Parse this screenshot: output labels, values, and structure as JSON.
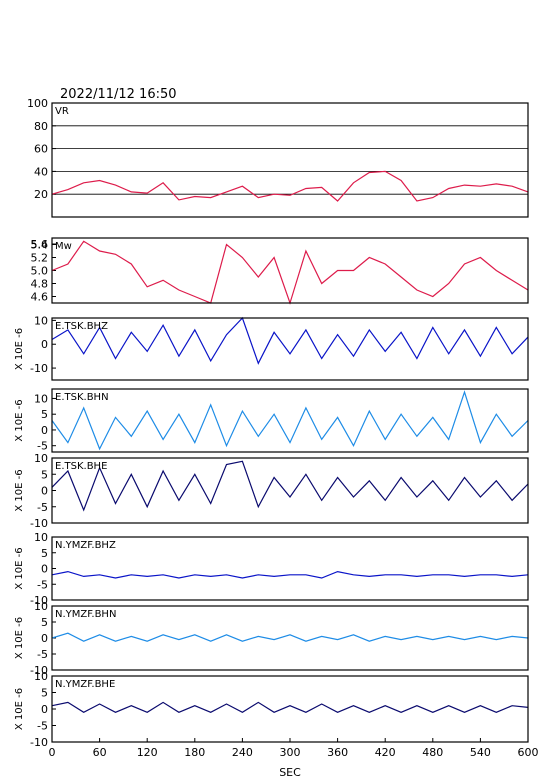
{
  "header": {
    "datetime": "2022/11/12  16:50"
  },
  "colors": {
    "vr": "#dd1c4b",
    "mw": "#dd1c4b",
    "bhz": "#0a14c8",
    "bhn": "#1e8ce6",
    "bhe": "#0a0a6e",
    "grid": "#000000"
  },
  "x_axis": {
    "label": "SEC",
    "range": [
      0,
      600
    ],
    "ticks": [
      "0",
      "60",
      "120",
      "180",
      "240",
      "300",
      "360",
      "420",
      "480",
      "540",
      "600"
    ]
  },
  "chart_data": [
    {
      "type": "line",
      "name": "VR",
      "label": "VR",
      "ylim": [
        0,
        100
      ],
      "ylabel": "",
      "yticks": [
        "100",
        "80",
        "60",
        "40",
        "20"
      ],
      "grid": true,
      "color_key": "vr",
      "x": [
        0,
        20,
        40,
        60,
        80,
        100,
        120,
        140,
        160,
        180,
        200,
        220,
        240,
        260,
        280,
        300,
        320,
        340,
        360,
        380,
        400,
        420,
        440,
        460,
        480,
        500,
        520,
        540,
        560,
        580,
        600
      ],
      "values": [
        20,
        24,
        30,
        32,
        28,
        22,
        21,
        30,
        15,
        18,
        17,
        22,
        27,
        17,
        20,
        19,
        25,
        26,
        14,
        30,
        39,
        40,
        32,
        14,
        17,
        25,
        28,
        27,
        29,
        27,
        22
      ]
    },
    {
      "type": "line",
      "name": "Mw",
      "label": "Mw",
      "ylim": [
        4.5,
        5.5
      ],
      "ylabel": "",
      "yticks": [
        "5.6",
        "5.4",
        "5.2",
        "5.0",
        "4.8",
        "4.6"
      ],
      "grid": false,
      "color_key": "mw",
      "x": [
        0,
        20,
        40,
        60,
        80,
        100,
        120,
        140,
        160,
        180,
        200,
        220,
        240,
        260,
        280,
        300,
        320,
        340,
        360,
        380,
        400,
        420,
        440,
        460,
        480,
        500,
        520,
        540,
        560,
        580,
        600
      ],
      "values": [
        5.0,
        5.1,
        5.45,
        5.3,
        5.25,
        5.1,
        4.75,
        4.85,
        4.7,
        4.6,
        4.5,
        5.4,
        5.2,
        4.9,
        5.2,
        4.5,
        5.3,
        4.8,
        5.0,
        5.0,
        5.2,
        5.1,
        4.9,
        4.7,
        4.6,
        4.8,
        5.1,
        5.2,
        5.0,
        4.85,
        4.7
      ]
    },
    {
      "type": "line",
      "name": "E.TSK.BHZ",
      "label": "E.TSK.BHZ",
      "ylim": [
        -15,
        11
      ],
      "ylabel": "X 10E -6",
      "yticks": [
        "10",
        "0",
        "-10"
      ],
      "grid": false,
      "color_key": "bhz",
      "x": [
        0,
        20,
        40,
        60,
        80,
        100,
        120,
        140,
        160,
        180,
        200,
        220,
        240,
        260,
        280,
        300,
        320,
        340,
        360,
        380,
        400,
        420,
        440,
        460,
        480,
        500,
        520,
        540,
        560,
        580,
        600
      ],
      "values": [
        2,
        6,
        -4,
        7,
        -6,
        5,
        -3,
        8,
        -5,
        6,
        -7,
        4,
        11,
        -8,
        5,
        -4,
        6,
        -6,
        4,
        -5,
        6,
        -3,
        5,
        -6,
        7,
        -4,
        6,
        -5,
        7,
        -4,
        3
      ]
    },
    {
      "type": "line",
      "name": "E.TSK.BHN",
      "label": "E.TSK.BHN",
      "ylim": [
        -7,
        13
      ],
      "ylabel": "X 10E -6",
      "yticks": [
        "10",
        "5",
        "0",
        "-5"
      ],
      "grid": false,
      "color_key": "bhn",
      "x": [
        0,
        20,
        40,
        60,
        80,
        100,
        120,
        140,
        160,
        180,
        200,
        220,
        240,
        260,
        280,
        300,
        320,
        340,
        360,
        380,
        400,
        420,
        440,
        460,
        480,
        500,
        520,
        540,
        560,
        580,
        600
      ],
      "values": [
        3,
        -4,
        7,
        -6,
        4,
        -2,
        6,
        -3,
        5,
        -4,
        8,
        -5,
        6,
        -2,
        5,
        -4,
        7,
        -3,
        4,
        -5,
        6,
        -3,
        5,
        -2,
        4,
        -3,
        12,
        -4,
        5,
        -2,
        3
      ]
    },
    {
      "type": "line",
      "name": "E.TSK.BHE",
      "label": "E.TSK.BHE",
      "ylim": [
        -10,
        10
      ],
      "ylabel": "X 10E -6",
      "yticks": [
        "10",
        "5",
        "0",
        "-5",
        "-10"
      ],
      "grid": false,
      "color_key": "bhe",
      "x": [
        0,
        20,
        40,
        60,
        80,
        100,
        120,
        140,
        160,
        180,
        200,
        220,
        240,
        260,
        280,
        300,
        320,
        340,
        360,
        380,
        400,
        420,
        440,
        460,
        480,
        500,
        520,
        540,
        560,
        580,
        600
      ],
      "values": [
        1,
        6,
        -6,
        7,
        -4,
        5,
        -5,
        6,
        -3,
        5,
        -4,
        8,
        9,
        -5,
        4,
        -2,
        5,
        -3,
        4,
        -2,
        3,
        -3,
        4,
        -2,
        3,
        -3,
        4,
        -2,
        3,
        -3,
        2
      ]
    },
    {
      "type": "line",
      "name": "N.YMZF.BHZ",
      "label": "N.YMZF.BHZ",
      "ylim": [
        -10,
        10
      ],
      "ylabel": "X 10E -6",
      "yticks": [
        "10",
        "5",
        "0",
        "-5",
        "-10"
      ],
      "grid": false,
      "color_key": "bhz",
      "x": [
        0,
        20,
        40,
        60,
        80,
        100,
        120,
        140,
        160,
        180,
        200,
        220,
        240,
        260,
        280,
        300,
        320,
        340,
        360,
        380,
        400,
        420,
        440,
        460,
        480,
        500,
        520,
        540,
        560,
        580,
        600
      ],
      "values": [
        -2,
        -1,
        -2.5,
        -2,
        -3,
        -2,
        -2.5,
        -2,
        -3,
        -2,
        -2.5,
        -2,
        -3,
        -2,
        -2.5,
        -2,
        -2,
        -3,
        -1,
        -2,
        -2.5,
        -2,
        -2,
        -2.5,
        -2,
        -2,
        -2.5,
        -2,
        -2,
        -2.5,
        -2
      ]
    },
    {
      "type": "line",
      "name": "N.YMZF.BHN",
      "label": "N.YMZF.BHN",
      "ylim": [
        -10,
        10
      ],
      "ylabel": "X 10E -6",
      "yticks": [
        "10",
        "5",
        "0",
        "-5",
        "-10"
      ],
      "grid": false,
      "color_key": "bhn",
      "x": [
        0,
        20,
        40,
        60,
        80,
        100,
        120,
        140,
        160,
        180,
        200,
        220,
        240,
        260,
        280,
        300,
        320,
        340,
        360,
        380,
        400,
        420,
        440,
        460,
        480,
        500,
        520,
        540,
        560,
        580,
        600
      ],
      "values": [
        0,
        1.5,
        -1,
        1,
        -1,
        0.5,
        -1,
        1,
        -0.5,
        1,
        -1,
        1,
        -1,
        0.5,
        -0.5,
        1,
        -1,
        0.5,
        -0.5,
        1,
        -1,
        0.5,
        -0.5,
        0.5,
        -0.5,
        0.5,
        -0.5,
        0.5,
        -0.5,
        0.5,
        0
      ]
    },
    {
      "type": "line",
      "name": "N.YMZF.BHE",
      "label": "N.YMZF.BHE",
      "ylim": [
        -10,
        10
      ],
      "ylabel": "X 10E -6",
      "yticks": [
        "10",
        "5",
        "0",
        "-5",
        "-10"
      ],
      "grid": false,
      "color_key": "bhe",
      "x": [
        0,
        20,
        40,
        60,
        80,
        100,
        120,
        140,
        160,
        180,
        200,
        220,
        240,
        260,
        280,
        300,
        320,
        340,
        360,
        380,
        400,
        420,
        440,
        460,
        480,
        500,
        520,
        540,
        560,
        580,
        600
      ],
      "values": [
        1,
        2,
        -1,
        1.5,
        -1,
        1,
        -1,
        2,
        -1,
        1,
        -1,
        1.5,
        -1,
        2,
        -1,
        1,
        -1,
        1.5,
        -1,
        1,
        -1,
        1,
        -1,
        1,
        -1,
        1,
        -1,
        1,
        -1,
        1,
        0.5
      ]
    }
  ]
}
